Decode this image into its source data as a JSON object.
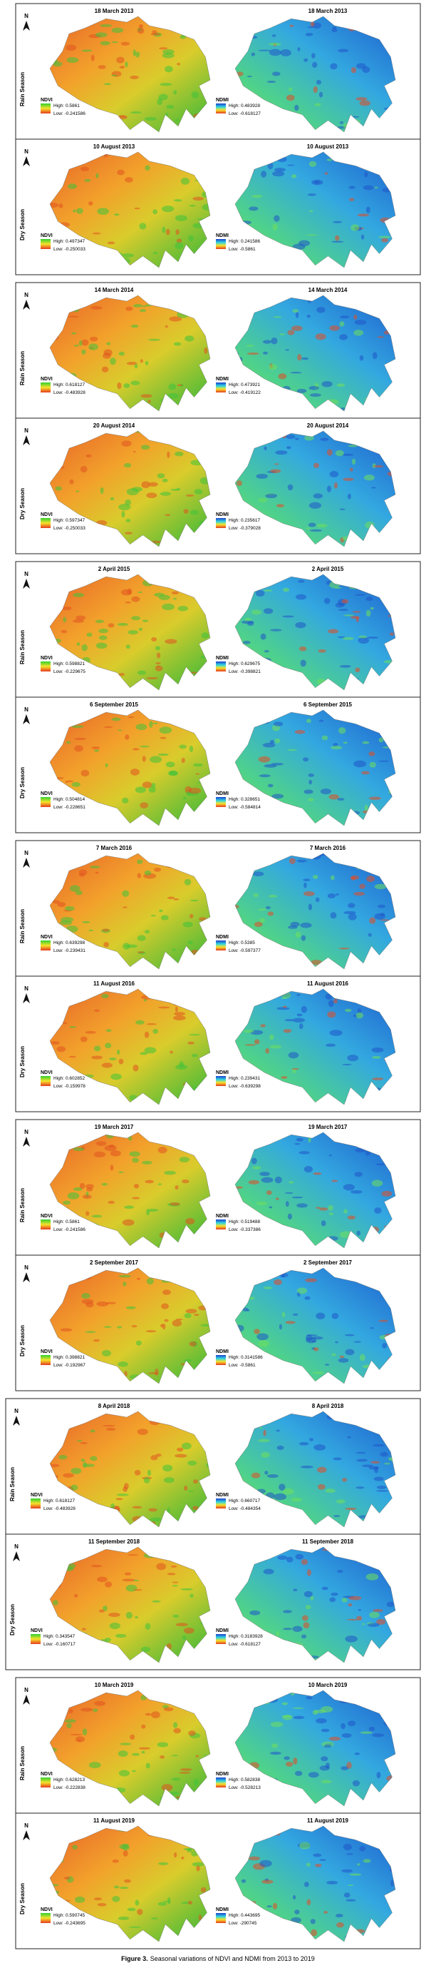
{
  "figure": {
    "blocks": [
      {
        "rows": [
          {
            "season": "Rain Season",
            "north": "N",
            "panels": [
              {
                "date": "18 March 2013",
                "index": "NDVI",
                "high": "High: 0.5861",
                "low": "Low: -0.241586"
              },
              {
                "date": "18 March 2013",
                "index": "NDMI",
                "high": "High: 0.483928",
                "low": "Low: -0.618127"
              }
            ]
          },
          {
            "season": "Dry Season",
            "north": "N",
            "panels": [
              {
                "date": "10 August 2013",
                "index": "NDVI",
                "high": "High: 0.497347",
                "low": "Low: -0.250033"
              },
              {
                "date": "10 August 2013",
                "index": "NDMI",
                "high": "High: 0.241586",
                "low": "Low: -0.5861"
              }
            ]
          }
        ]
      },
      {
        "rows": [
          {
            "season": "Rain Season",
            "north": "N",
            "panels": [
              {
                "date": "14 March 2014",
                "index": "NDVI",
                "high": "High: 0.618127",
                "low": "Low: -0.483928"
              },
              {
                "date": "14 March 2014",
                "index": "NDMI",
                "high": "High: 0.473921",
                "low": "Low: -0.419122"
              }
            ]
          },
          {
            "season": "Dry Season",
            "north": "N",
            "panels": [
              {
                "date": "20 August 2014",
                "index": "NDVI",
                "high": "High: 0.597347",
                "low": "Low: -0.250033"
              },
              {
                "date": "20 August 2014",
                "index": "NDMI",
                "high": "High: 0.235617",
                "low": "Low: -0.379028"
              }
            ]
          }
        ]
      },
      {
        "rows": [
          {
            "season": "Rain Season",
            "north": "N",
            "panels": [
              {
                "date": "2 April 2015",
                "index": "NDVI",
                "high": "High: 0.598821",
                "low": "Low: -0.229675"
              },
              {
                "date": "2 April 2015",
                "index": "NDMI",
                "high": "High: 0.629675",
                "low": "Low: -0.398821"
              }
            ]
          },
          {
            "season": "Dry Season",
            "north": "N",
            "panels": [
              {
                "date": "6 September 2015",
                "index": "NDVI",
                "high": "High: 0.504814",
                "low": "Low: -0.228651"
              },
              {
                "date": "6 September 2015",
                "index": "NDMI",
                "high": "High: 0.328651",
                "low": "Low: -0.584814"
              }
            ]
          }
        ]
      },
      {
        "rows": [
          {
            "season": "Rain Season",
            "north": "N",
            "panels": [
              {
                "date": "7 March 2016",
                "index": "NDVI",
                "high": "High: 0.639298",
                "low": "Low: -0.239431"
              },
              {
                "date": "7 March 2016",
                "index": "NDMI",
                "high": "High: 0.5385",
                "low": "Low: -0.597377"
              }
            ]
          },
          {
            "season": "Dry Season",
            "north": "N",
            "panels": [
              {
                "date": "11 August 2016",
                "index": "NDVI",
                "high": "High: 0.602852",
                "low": "Low: -0.159978"
              },
              {
                "date": "11 August 2016",
                "index": "NDMI",
                "high": "High: 0.239431",
                "low": "Low: -0.639298"
              }
            ]
          }
        ]
      },
      {
        "rows": [
          {
            "season": "Rain Season",
            "north": "N",
            "panels": [
              {
                "date": "19 March 2017",
                "index": "NDVI",
                "high": "High: 0.5861",
                "low": "Low: -0.241586"
              },
              {
                "date": "19 March 2017",
                "index": "NDMI",
                "high": "High: 0.519488",
                "low": "Low: -0.337386"
              }
            ]
          },
          {
            "season": "Dry Season",
            "north": "N",
            "panels": [
              {
                "date": "2 September 2017",
                "index": "NDVI",
                "high": "High: 0.398821",
                "low": "Low: -0.192967"
              },
              {
                "date": "2 September 2017",
                "index": "NDMI",
                "high": "High: 0.3141586",
                "low": "Low: -0.5861"
              }
            ]
          }
        ]
      },
      {
        "rows": [
          {
            "season": "Rain Season",
            "north": "N",
            "panels": [
              {
                "date": "8 April 2018",
                "index": "NDVI",
                "high": "High: 0.618127",
                "low": "Low: -0.483928"
              },
              {
                "date": "8 April 2018",
                "index": "NDMI",
                "high": "High: 0.660717",
                "low": "Low: -0.484354"
              }
            ]
          },
          {
            "season": "Dry Season",
            "north": "N",
            "panels": [
              {
                "date": "11 September 2018",
                "index": "NDVI",
                "high": "High: 0.343547",
                "low": "Low: -0.160717"
              },
              {
                "date": "11 September 2018",
                "index": "NDMI",
                "high": "High: 0.3183928",
                "low": "Low: -0.618127"
              }
            ]
          }
        ]
      },
      {
        "rows": [
          {
            "season": "Rain Season",
            "north": "N",
            "panels": [
              {
                "date": "10 March 2019",
                "index": "NDVI",
                "high": "High: 0.628213",
                "low": "Low: -0.222838"
              },
              {
                "date": "10 March 2019",
                "index": "NDMI",
                "high": "High: 0.582838",
                "low": "Low: -0.528213"
              }
            ]
          },
          {
            "season": "Dry Season",
            "north": "N",
            "panels": [
              {
                "date": "11 August 2019",
                "index": "NDVI",
                "high": "High: 0.590745",
                "low": "Low: -0.243695"
              },
              {
                "date": "11 August 2019",
                "index": "NDMI",
                "high": "High: 0.443695",
                "low": "Low: -290745"
              }
            ]
          }
        ]
      }
    ],
    "caption": {
      "label": "Figure 3.",
      "text": "Seasonal variations of NDVI and NDMI from 2013 to 2019"
    }
  }
}
